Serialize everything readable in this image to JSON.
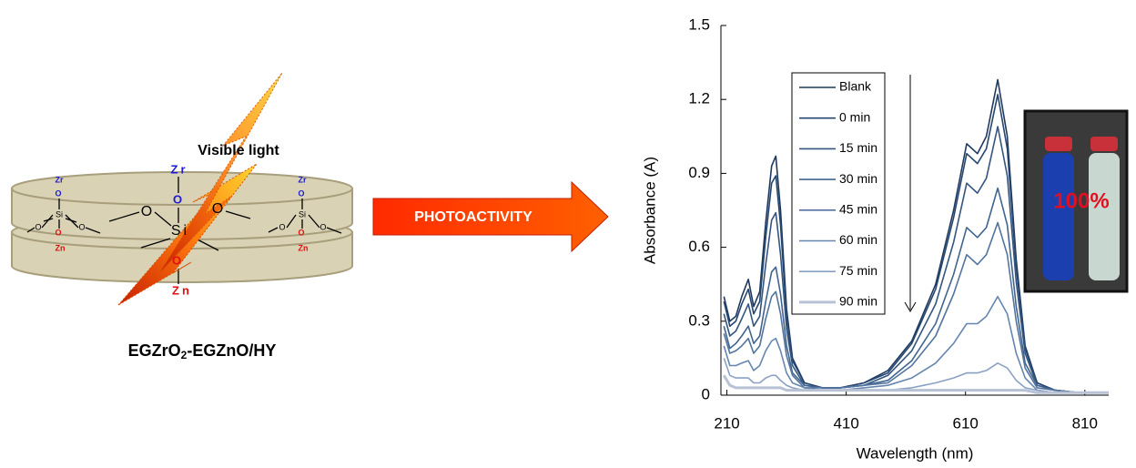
{
  "diagram": {
    "light_label": "Visible light",
    "molecule": {
      "zr": "Zr",
      "o": "O",
      "si": "Si",
      "zn": "Zn"
    },
    "caption": [
      "EGZrO",
      "2",
      "-EGZnO/HY"
    ],
    "arrow_label": "PHOTOACTIVITY",
    "inset_label": "100%"
  },
  "chart_data": {
    "type": "line",
    "xlabel": "Wavelength (nm)",
    "ylabel": "Absorbance (A)",
    "xlim": [
      200,
      850
    ],
    "xticks": [
      210,
      410,
      610,
      810
    ],
    "ylim": [
      0,
      1.5
    ],
    "yticks": [
      0,
      0.3,
      0.6,
      0.9,
      1.2,
      1.5
    ],
    "grid": false,
    "legend": "upper-center",
    "x": [
      205,
      215,
      225,
      235,
      246,
      255,
      265,
      275,
      285,
      292,
      300,
      310,
      320,
      340,
      370,
      400,
      440,
      480,
      520,
      560,
      590,
      612,
      630,
      645,
      664,
      680,
      695,
      710,
      730,
      760,
      800,
      850
    ],
    "series": [
      {
        "name": "Blank",
        "color": "#1f3a5f",
        "values": [
          0.4,
          0.3,
          0.32,
          0.4,
          0.47,
          0.36,
          0.42,
          0.7,
          0.93,
          0.97,
          0.75,
          0.35,
          0.15,
          0.05,
          0.03,
          0.03,
          0.05,
          0.1,
          0.22,
          0.45,
          0.75,
          1.02,
          0.98,
          1.05,
          1.28,
          1.05,
          0.55,
          0.2,
          0.05,
          0.02,
          0.01,
          0.01
        ]
      },
      {
        "name": "0 min",
        "color": "#27466f",
        "values": [
          0.38,
          0.28,
          0.3,
          0.37,
          0.43,
          0.33,
          0.38,
          0.64,
          0.86,
          0.89,
          0.69,
          0.32,
          0.14,
          0.05,
          0.03,
          0.03,
          0.05,
          0.09,
          0.21,
          0.43,
          0.72,
          0.98,
          0.94,
          1.0,
          1.22,
          1.0,
          0.52,
          0.19,
          0.05,
          0.02,
          0.01,
          0.01
        ]
      },
      {
        "name": "15 min",
        "color": "#34557f",
        "values": [
          0.33,
          0.24,
          0.26,
          0.31,
          0.37,
          0.28,
          0.32,
          0.53,
          0.71,
          0.74,
          0.57,
          0.27,
          0.12,
          0.04,
          0.03,
          0.03,
          0.04,
          0.08,
          0.18,
          0.37,
          0.62,
          0.86,
          0.82,
          0.88,
          1.09,
          0.89,
          0.46,
          0.17,
          0.04,
          0.02,
          0.01,
          0.01
        ]
      },
      {
        "name": "30 min",
        "color": "#41648f",
        "values": [
          0.28,
          0.19,
          0.21,
          0.24,
          0.28,
          0.21,
          0.24,
          0.38,
          0.5,
          0.52,
          0.41,
          0.2,
          0.09,
          0.04,
          0.03,
          0.03,
          0.04,
          0.06,
          0.14,
          0.29,
          0.49,
          0.68,
          0.64,
          0.68,
          0.84,
          0.69,
          0.36,
          0.13,
          0.04,
          0.02,
          0.01,
          0.01
        ]
      },
      {
        "name": "45 min",
        "color": "#52749f",
        "values": [
          0.25,
          0.17,
          0.18,
          0.2,
          0.23,
          0.17,
          0.2,
          0.31,
          0.4,
          0.42,
          0.33,
          0.16,
          0.08,
          0.03,
          0.03,
          0.03,
          0.04,
          0.05,
          0.12,
          0.24,
          0.41,
          0.57,
          0.53,
          0.57,
          0.7,
          0.57,
          0.3,
          0.11,
          0.03,
          0.02,
          0.01,
          0.01
        ]
      },
      {
        "name": "60 min",
        "color": "#6686b0",
        "values": [
          0.2,
          0.12,
          0.12,
          0.13,
          0.14,
          0.1,
          0.12,
          0.18,
          0.22,
          0.23,
          0.18,
          0.09,
          0.05,
          0.03,
          0.02,
          0.02,
          0.03,
          0.04,
          0.07,
          0.13,
          0.21,
          0.29,
          0.29,
          0.32,
          0.4,
          0.33,
          0.17,
          0.07,
          0.02,
          0.01,
          0.01,
          0.01
        ]
      },
      {
        "name": "75 min",
        "color": "#8aa0c4",
        "values": [
          0.15,
          0.08,
          0.07,
          0.07,
          0.07,
          0.05,
          0.05,
          0.07,
          0.08,
          0.08,
          0.06,
          0.04,
          0.03,
          0.02,
          0.02,
          0.02,
          0.02,
          0.02,
          0.03,
          0.05,
          0.07,
          0.09,
          0.09,
          0.1,
          0.13,
          0.11,
          0.06,
          0.03,
          0.02,
          0.01,
          0.01,
          0.01
        ]
      },
      {
        "name": "90 min",
        "color": "#b8c2d4",
        "values": [
          0.08,
          0.04,
          0.03,
          0.03,
          0.03,
          0.03,
          0.03,
          0.03,
          0.03,
          0.03,
          0.03,
          0.02,
          0.02,
          0.02,
          0.02,
          0.02,
          0.02,
          0.02,
          0.02,
          0.02,
          0.02,
          0.02,
          0.02,
          0.02,
          0.02,
          0.02,
          0.02,
          0.02,
          0.01,
          0.01,
          0.01,
          0.01
        ]
      }
    ]
  }
}
